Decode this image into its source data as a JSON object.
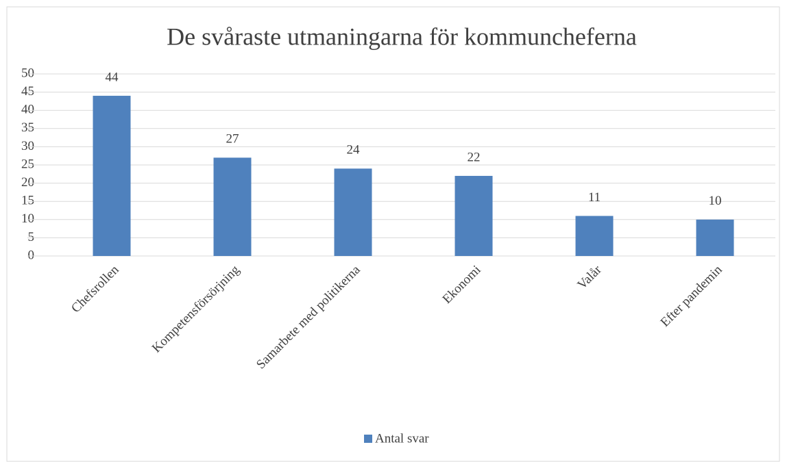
{
  "chart_data": {
    "type": "bar",
    "title": "De svåraste utmaningarna för kommuncheferna",
    "categories": [
      "Chefsrollen",
      "Kompetensförsörjning",
      "Samarbete med politikerna",
      "Ekonomi",
      "Valår",
      "Efter pandemin"
    ],
    "series": [
      {
        "name": "Antal svar",
        "color": "#4f81bd",
        "values": [
          44,
          27,
          24,
          22,
          11,
          10
        ]
      }
    ],
    "ylim": [
      0,
      50
    ],
    "yticks": [
      0,
      5,
      10,
      15,
      20,
      25,
      30,
      35,
      40,
      45,
      50
    ],
    "grid": true,
    "legend": "bottom"
  }
}
